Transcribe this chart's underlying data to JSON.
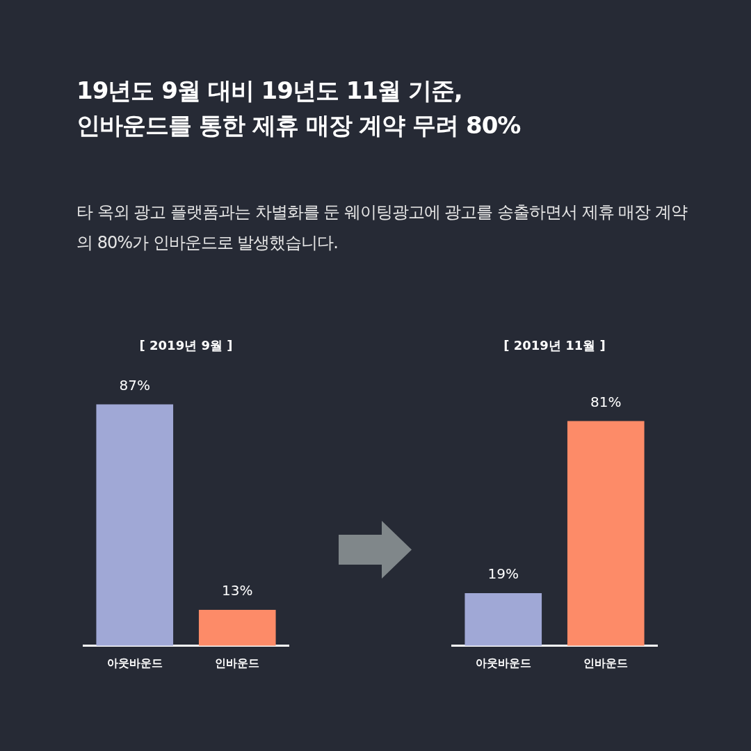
{
  "chart_data": [
    {
      "type": "other",
      "title": "19년도 9월 대비 19년도 11월 기준,\n인바운드를 통한 제휴 매장 계약 무려 80%",
      "subtitle": "타 옥외 광고 플랫폼과는 차별화를 둔 웨이팅광고에 광고를 송출하면서 제휴 매장 계약의 80%가 인바운드로 발생했습니다."
    },
    {
      "type": "bar",
      "title": "[ 2019년 9월 ]",
      "categories": [
        "아웃바운드",
        "인바운드"
      ],
      "values": [
        87,
        13
      ],
      "colors": [
        "#a0a8d6",
        "#fd8b68"
      ],
      "value_labels": [
        "87%",
        "13%"
      ],
      "tick_labels": "x"
    },
    {
      "type": "bar",
      "title": "[ 2019년 11월 ]",
      "categories": [
        "아웃바운드",
        "인바운드"
      ],
      "values": [
        19,
        81
      ],
      "colors": [
        "#a0a8d6",
        "#fd8b68"
      ],
      "value_labels": [
        "19%",
        "81%"
      ],
      "tick_labels": "x"
    }
  ]
}
